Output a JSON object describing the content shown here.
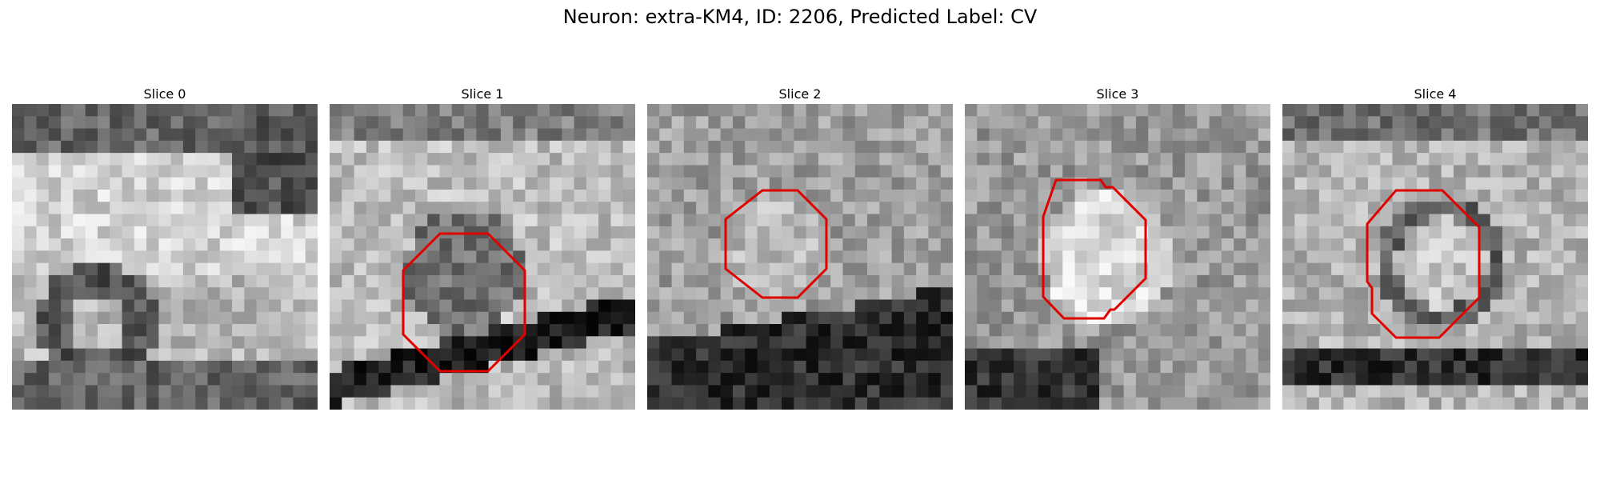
{
  "figure": {
    "title": "Neuron: extra-KM4, ID: 2206, Predicted Label: CV",
    "contour_color": "#e00000"
  },
  "panels": [
    {
      "title": "Slice 0",
      "image": "grayscale EM crop, bright membrane band across upper half, dark ring at lower-left, no contour",
      "has_contour": false
    },
    {
      "title": "Slice 1",
      "image": "grayscale EM crop with dark curved band at bottom",
      "has_contour": true
    },
    {
      "title": "Slice 2",
      "image": "grayscale EM crop, speckled texture, dark region at bottom",
      "has_contour": true
    },
    {
      "title": "Slice 3",
      "image": "grayscale EM crop, bright blob in center",
      "has_contour": true
    },
    {
      "title": "Slice 4",
      "image": "grayscale EM crop, ring-shaped structure in center",
      "has_contour": true
    }
  ]
}
